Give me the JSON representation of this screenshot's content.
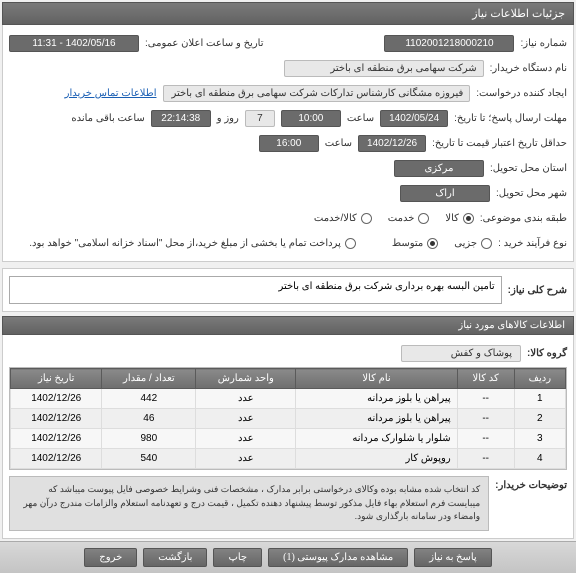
{
  "header": {
    "title": "جزئیات اطلاعات نیاز"
  },
  "fields": {
    "need_number_label": "شماره نیاز:",
    "need_number": "1102001218000210",
    "announce_label": "تاریخ و ساعت اعلان عمومی:",
    "announce_value": "1402/05/16 - 11:31",
    "buyer_label": "نام دستگاه خریدار:",
    "buyer_value": "شرکت سهامی برق منطقه ای باختر",
    "creator_label": "ایجاد کننده درخواست:",
    "creator_value": "فیروزه مشگانی کارشناس تدارکات شرکت سهامی برق منطقه ای باختر",
    "contact_link": "اطلاعات تماس خریدار",
    "deadline_date_label": "مهلت ارسال پاسخ؛ تا تاریخ:",
    "deadline_date": "1402/05/24",
    "time_label1": "ساعت",
    "deadline_time": "10:00",
    "days_count": "7",
    "days_label": "روز و",
    "remaining_time": "22:14:38",
    "remaining_label": "ساعت باقی مانده",
    "validity_label": "حداقل تاریخ اعتبار قیمت تا تاریخ:",
    "validity_date": "1402/12/26",
    "validity_time": "16:00",
    "province_label": "استان محل تحویل:",
    "province": "مرکزی",
    "city_label": "شهر محل تحویل:",
    "city": "اراک",
    "category_label": "طبقه بندی موضوعی:",
    "cat_goods": "کالا",
    "cat_service": "خدمت",
    "cat_both": "کالا/خدمت",
    "process_label": "نوع فرآیند خرید :",
    "proc_small": "جزیی",
    "proc_medium": "متوسط",
    "payment_note": "پرداخت تمام یا بخشی از مبلغ خرید،از محل \"اسناد خزانه اسلامی\" خواهد بود.",
    "desc_label": "شرح کلی نیاز:",
    "desc_value": "تامین  البسه بهره برداری  شرکت برق منطقه ای باختر",
    "items_header": "اطلاعات کالاهای مورد نیاز",
    "group_label": "گروه کالا:",
    "group_value": "پوشاک و کفش",
    "note_label": "توضیحات خریدار:",
    "note_text": "کد انتخاب شده مشابه بوده وکالای درخواستی برابر مدارک ، مشخصات فنی وشرایط خصوصی فایل پیوست میباشد که میبایست فرم استعلام بهاء فایل مذکور توسط پیشنهاد دهنده تکمیل ، قیمت درج و تعهدنامه استعلام والزامات  مندرج درآن مهر وامضاء ودر سامانه بارگذاری شود."
  },
  "table": {
    "headers": {
      "row": "ردیف",
      "code": "کد کالا",
      "name": "نام کالا",
      "unit": "واحد شمارش",
      "qty": "تعداد / مقدار",
      "date": "تاریخ نیاز"
    },
    "rows": [
      {
        "n": "1",
        "code": "--",
        "name": "پیراهن یا بلوز مردانه",
        "unit": "عدد",
        "qty": "442",
        "date": "1402/12/26"
      },
      {
        "n": "2",
        "code": "--",
        "name": "پیراهن یا بلوز مردانه",
        "unit": "عدد",
        "qty": "46",
        "date": "1402/12/26"
      },
      {
        "n": "3",
        "code": "--",
        "name": "شلوار یا شلوارک مردانه",
        "unit": "عدد",
        "qty": "980",
        "date": "1402/12/26"
      },
      {
        "n": "4",
        "code": "--",
        "name": "روپوش کار",
        "unit": "عدد",
        "qty": "540",
        "date": "1402/12/26"
      }
    ]
  },
  "buttons": {
    "respond": "پاسخ به نیاز",
    "attachments": "مشاهده مدارک پیوستی (1)",
    "print": "چاپ",
    "back": "بازگشت",
    "exit": "خروج"
  }
}
